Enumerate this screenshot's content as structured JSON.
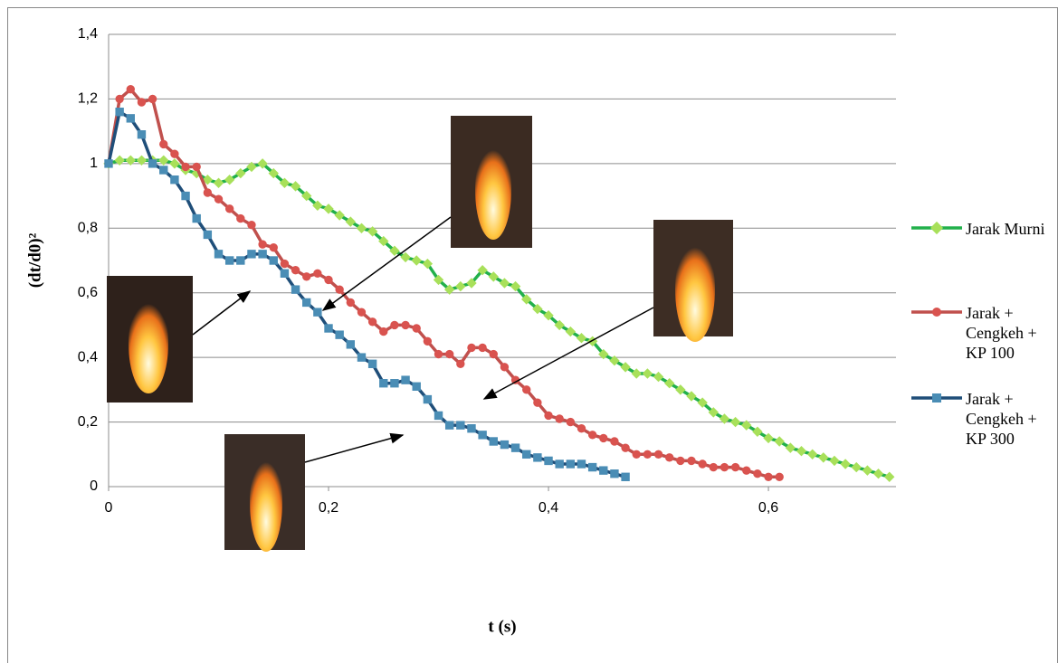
{
  "chart_data": {
    "type": "line",
    "x_label": "t (s)",
    "y_label": "(dt/d0)²",
    "xlim": [
      0,
      0.716
    ],
    "ylim": [
      0,
      1.4
    ],
    "xticks": [
      0,
      {
        "value": 0.2,
        "label": "0,2"
      },
      {
        "value": 0.4,
        "label": "0,4"
      },
      {
        "value": 0.6,
        "label": "0,6"
      }
    ],
    "yticks": [
      0,
      {
        "value": 0.2,
        "label": "0,2"
      },
      {
        "value": 0.4,
        "label": "0,4"
      },
      {
        "value": 0.6,
        "label": "0,6"
      },
      {
        "value": 0.8,
        "label": "0,8"
      },
      1,
      {
        "value": 1.2,
        "label": "1,2"
      },
      {
        "value": 1.4,
        "label": "1,4"
      }
    ],
    "grid": true,
    "legend": "right",
    "series": [
      {
        "name": "Jarak Murni",
        "color": "#22b04b",
        "marker": "diamond",
        "marker_color": "#a8e05a",
        "x": [
          0,
          0.01,
          0.02,
          0.03,
          0.04,
          0.05,
          0.06,
          0.07,
          0.08,
          0.09,
          0.1,
          0.11,
          0.12,
          0.13,
          0.14,
          0.15,
          0.16,
          0.17,
          0.18,
          0.19,
          0.2,
          0.21,
          0.22,
          0.23,
          0.24,
          0.25,
          0.26,
          0.27,
          0.28,
          0.29,
          0.3,
          0.31,
          0.32,
          0.33,
          0.34,
          0.35,
          0.36,
          0.37,
          0.38,
          0.39,
          0.4,
          0.41,
          0.42,
          0.43,
          0.44,
          0.45,
          0.46,
          0.47,
          0.48,
          0.49,
          0.5,
          0.51,
          0.52,
          0.53,
          0.54,
          0.55,
          0.56,
          0.57,
          0.58,
          0.59,
          0.6,
          0.61,
          0.62,
          0.63,
          0.64,
          0.65,
          0.66,
          0.67,
          0.68,
          0.69,
          0.7,
          0.71
        ],
        "values": [
          1,
          1.01,
          1.01,
          1.01,
          1.01,
          1.01,
          1.0,
          0.98,
          0.97,
          0.95,
          0.94,
          0.95,
          0.97,
          0.99,
          1.0,
          0.97,
          0.94,
          0.93,
          0.9,
          0.87,
          0.86,
          0.84,
          0.82,
          0.8,
          0.79,
          0.76,
          0.73,
          0.71,
          0.7,
          0.69,
          0.64,
          0.61,
          0.62,
          0.63,
          0.67,
          0.65,
          0.63,
          0.62,
          0.58,
          0.55,
          0.53,
          0.5,
          0.48,
          0.46,
          0.45,
          0.41,
          0.39,
          0.37,
          0.35,
          0.35,
          0.34,
          0.32,
          0.3,
          0.28,
          0.26,
          0.23,
          0.21,
          0.2,
          0.19,
          0.17,
          0.15,
          0.14,
          0.12,
          0.11,
          0.1,
          0.09,
          0.08,
          0.07,
          0.06,
          0.05,
          0.04,
          0.03
        ]
      },
      {
        "name": "Jarak + Cengkeh + KP 100",
        "color": "#c0504d",
        "marker": "circle",
        "marker_color": "#d9534f",
        "x": [
          0,
          0.01,
          0.02,
          0.03,
          0.04,
          0.05,
          0.06,
          0.07,
          0.08,
          0.09,
          0.1,
          0.11,
          0.12,
          0.13,
          0.14,
          0.15,
          0.16,
          0.17,
          0.18,
          0.19,
          0.2,
          0.21,
          0.22,
          0.23,
          0.24,
          0.25,
          0.26,
          0.27,
          0.28,
          0.29,
          0.3,
          0.31,
          0.32,
          0.33,
          0.34,
          0.35,
          0.36,
          0.37,
          0.38,
          0.39,
          0.4,
          0.41,
          0.42,
          0.43,
          0.44,
          0.45,
          0.46,
          0.47,
          0.48,
          0.49,
          0.5,
          0.51,
          0.52,
          0.53,
          0.54,
          0.55,
          0.56,
          0.57,
          0.58,
          0.59,
          0.6,
          0.61
        ],
        "values": [
          1,
          1.2,
          1.23,
          1.19,
          1.2,
          1.06,
          1.03,
          0.99,
          0.99,
          0.91,
          0.89,
          0.86,
          0.83,
          0.81,
          0.75,
          0.74,
          0.69,
          0.67,
          0.65,
          0.66,
          0.64,
          0.61,
          0.57,
          0.54,
          0.51,
          0.48,
          0.5,
          0.5,
          0.49,
          0.45,
          0.41,
          0.41,
          0.38,
          0.43,
          0.43,
          0.41,
          0.37,
          0.33,
          0.3,
          0.26,
          0.22,
          0.21,
          0.2,
          0.18,
          0.16,
          0.15,
          0.14,
          0.12,
          0.1,
          0.1,
          0.1,
          0.09,
          0.08,
          0.08,
          0.07,
          0.06,
          0.06,
          0.06,
          0.05,
          0.04,
          0.03,
          0.03
        ]
      },
      {
        "name": "Jarak + Cengkeh + KP 300",
        "color": "#1f4e79",
        "marker": "square",
        "marker_color": "#4a8db5",
        "x": [
          0,
          0.01,
          0.02,
          0.03,
          0.04,
          0.05,
          0.06,
          0.07,
          0.08,
          0.09,
          0.1,
          0.11,
          0.12,
          0.13,
          0.14,
          0.15,
          0.16,
          0.17,
          0.18,
          0.19,
          0.2,
          0.21,
          0.22,
          0.23,
          0.24,
          0.25,
          0.26,
          0.27,
          0.28,
          0.29,
          0.3,
          0.31,
          0.32,
          0.33,
          0.34,
          0.35,
          0.36,
          0.37,
          0.38,
          0.39,
          0.4,
          0.41,
          0.42,
          0.43,
          0.44,
          0.45,
          0.46,
          0.47
        ],
        "values": [
          1,
          1.16,
          1.14,
          1.09,
          1.0,
          0.98,
          0.95,
          0.9,
          0.83,
          0.78,
          0.72,
          0.7,
          0.7,
          0.72,
          0.72,
          0.7,
          0.66,
          0.61,
          0.57,
          0.54,
          0.49,
          0.47,
          0.44,
          0.4,
          0.38,
          0.32,
          0.32,
          0.33,
          0.31,
          0.27,
          0.22,
          0.19,
          0.19,
          0.18,
          0.16,
          0.14,
          0.13,
          0.12,
          0.1,
          0.09,
          0.08,
          0.07,
          0.07,
          0.07,
          0.06,
          0.05,
          0.04,
          0.03
        ]
      }
    ]
  }
}
